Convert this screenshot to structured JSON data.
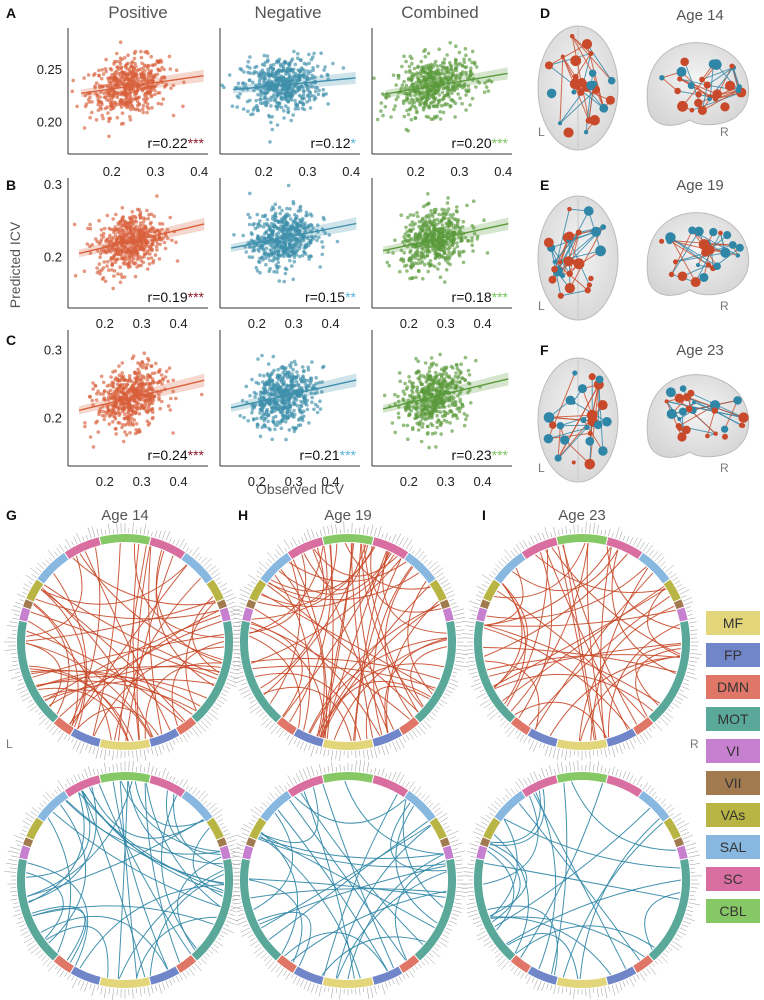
{
  "panel_labels": [
    "A",
    "B",
    "C",
    "D",
    "E",
    "F",
    "G",
    "H",
    "I"
  ],
  "column_titles": [
    "Positive",
    "Negative",
    "Combined"
  ],
  "y_axis_label": "Predicted ICV",
  "x_axis_label": "Observed ICV",
  "colors": {
    "positive": "#d9603b",
    "negative": "#3e8fab",
    "combined": "#5b9a3c",
    "positive_star": "#8b1a2b",
    "negative_star": "#5ab0d8",
    "combined_star": "#79c25a",
    "chord_positive": "#c84a2a",
    "chord_negative": "#2f86a6"
  },
  "brain_ages": [
    "Age 14",
    "Age 19",
    "Age 23"
  ],
  "brain_side_labels": [
    "L",
    "R"
  ],
  "circle_ages": [
    "Age 14",
    "Age 19",
    "Age 23"
  ],
  "circle_side_labels": [
    "L",
    "R"
  ],
  "legend": [
    {
      "label": "MF",
      "color": "#e3d57a"
    },
    {
      "label": "FP",
      "color": "#7086c9"
    },
    {
      "label": "DMN",
      "color": "#e07667"
    },
    {
      "label": "MOT",
      "color": "#5aa89a"
    },
    {
      "label": "VI",
      "color": "#c77fd0"
    },
    {
      "label": "VII",
      "color": "#a17a4f"
    },
    {
      "label": "VAs",
      "color": "#b8b544"
    },
    {
      "label": "SAL",
      "color": "#88b8e0"
    },
    {
      "label": "SC",
      "color": "#d96fa0"
    },
    {
      "label": "CBL",
      "color": "#86c766"
    }
  ],
  "chart_data": [
    {
      "type": "scatter",
      "panel": "A",
      "column": "Positive",
      "xticks": [
        "0.2",
        "0.3",
        "0.4"
      ],
      "yticks": [
        "0.20",
        "0.25"
      ],
      "xlim": [
        0.1,
        0.42
      ],
      "ylim": [
        0.17,
        0.29
      ],
      "r": "r=0.22",
      "stars": "***",
      "slope": 0.06,
      "intercept": 0.22
    },
    {
      "type": "scatter",
      "panel": "A",
      "column": "Negative",
      "xticks": [
        "0.2",
        "0.3",
        "0.4"
      ],
      "yticks": [],
      "xlim": [
        0.1,
        0.42
      ],
      "ylim": [
        0.17,
        0.29
      ],
      "r": "r=0.12",
      "stars": "*",
      "slope": 0.04,
      "intercept": 0.226
    },
    {
      "type": "scatter",
      "panel": "A",
      "column": "Combined",
      "xticks": [
        "0.2",
        "0.3",
        "0.4"
      ],
      "yticks": [],
      "xlim": [
        0.1,
        0.42
      ],
      "ylim": [
        0.17,
        0.29
      ],
      "r": "r=0.20",
      "stars": "***",
      "slope": 0.07,
      "intercept": 0.218
    },
    {
      "type": "scatter",
      "panel": "B",
      "column": "Positive",
      "xticks": [
        "0.2",
        "0.3",
        "0.4"
      ],
      "yticks": [
        "0.2",
        "0.3"
      ],
      "xlim": [
        0.1,
        0.48
      ],
      "ylim": [
        0.13,
        0.31
      ],
      "r": "r=0.19",
      "stars": "***",
      "slope": 0.12,
      "intercept": 0.19
    },
    {
      "type": "scatter",
      "panel": "B",
      "column": "Negative",
      "xticks": [
        "0.2",
        "0.3",
        "0.4"
      ],
      "yticks": [],
      "xlim": [
        0.1,
        0.48
      ],
      "ylim": [
        0.13,
        0.31
      ],
      "r": "r=0.15",
      "stars": "**",
      "slope": 0.1,
      "intercept": 0.2
    },
    {
      "type": "scatter",
      "panel": "B",
      "column": "Combined",
      "xticks": [
        "0.2",
        "0.3",
        "0.4"
      ],
      "yticks": [],
      "xlim": [
        0.1,
        0.48
      ],
      "ylim": [
        0.13,
        0.31
      ],
      "r": "r=0.18",
      "stars": "***",
      "slope": 0.11,
      "intercept": 0.195
    },
    {
      "type": "scatter",
      "panel": "C",
      "column": "Positive",
      "xticks": [
        "0.2",
        "0.3",
        "0.4"
      ],
      "yticks": [
        "0.2",
        "0.3"
      ],
      "xlim": [
        0.1,
        0.48
      ],
      "ylim": [
        0.13,
        0.33
      ],
      "r": "r=0.24",
      "stars": "***",
      "slope": 0.13,
      "intercept": 0.195
    },
    {
      "type": "scatter",
      "panel": "C",
      "column": "Negative",
      "xticks": [
        "0.2",
        "0.3",
        "0.4"
      ],
      "yticks": [],
      "xlim": [
        0.1,
        0.48
      ],
      "ylim": [
        0.13,
        0.33
      ],
      "r": "r=0.21",
      "stars": "***",
      "slope": 0.12,
      "intercept": 0.2
    },
    {
      "type": "scatter",
      "panel": "C",
      "column": "Combined",
      "xticks": [
        "0.2",
        "0.3",
        "0.4"
      ],
      "yticks": [],
      "xlim": [
        0.1,
        0.48
      ],
      "ylim": [
        0.13,
        0.33
      ],
      "r": "r=0.23",
      "stars": "***",
      "slope": 0.13,
      "intercept": 0.197
    }
  ]
}
